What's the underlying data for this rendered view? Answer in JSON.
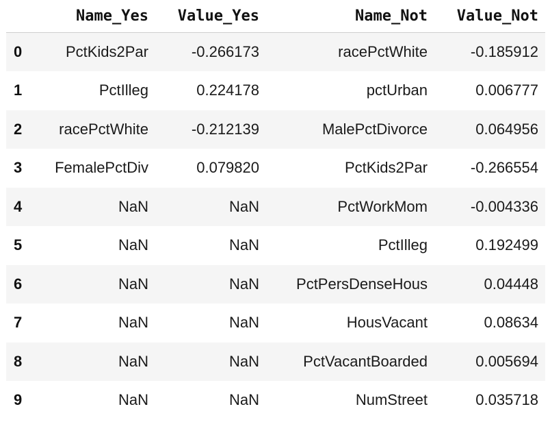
{
  "table": {
    "columns": [
      "",
      "Name_Yes",
      "Value_Yes",
      "Name_Not",
      "Value_Not"
    ],
    "rows": [
      {
        "index": "0",
        "name_yes": "PctKids2Par",
        "value_yes": "-0.266173",
        "name_not": "racePctWhite",
        "value_not": "-0.185912"
      },
      {
        "index": "1",
        "name_yes": "PctIlleg",
        "value_yes": "0.224178",
        "name_not": "pctUrban",
        "value_not": "0.006777"
      },
      {
        "index": "2",
        "name_yes": "racePctWhite",
        "value_yes": "-0.212139",
        "name_not": "MalePctDivorce",
        "value_not": "0.064956"
      },
      {
        "index": "3",
        "name_yes": "FemalePctDiv",
        "value_yes": "0.079820",
        "name_not": "PctKids2Par",
        "value_not": "-0.266554"
      },
      {
        "index": "4",
        "name_yes": "NaN",
        "value_yes": "NaN",
        "name_not": "PctWorkMom",
        "value_not": "-0.004336"
      },
      {
        "index": "5",
        "name_yes": "NaN",
        "value_yes": "NaN",
        "name_not": "PctIlleg",
        "value_not": "0.192499"
      },
      {
        "index": "6",
        "name_yes": "NaN",
        "value_yes": "NaN",
        "name_not": "PctPersDenseHous",
        "value_not": "0.04448"
      },
      {
        "index": "7",
        "name_yes": "NaN",
        "value_yes": "NaN",
        "name_not": "HousVacant",
        "value_not": "0.08634"
      },
      {
        "index": "8",
        "name_yes": "NaN",
        "value_yes": "NaN",
        "name_not": "PctVacantBoarded",
        "value_not": "0.005694"
      },
      {
        "index": "9",
        "name_yes": "NaN",
        "value_yes": "NaN",
        "name_not": "NumStreet",
        "value_not": "0.035718"
      }
    ]
  }
}
